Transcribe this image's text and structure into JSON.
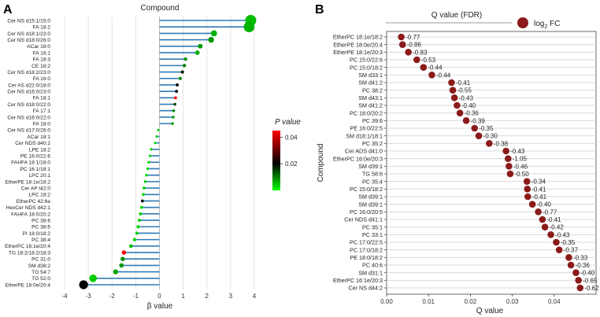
{
  "figure": {
    "panel_a_letter": "A",
    "panel_b_letter": "B"
  },
  "chart_data": [
    {
      "type": "scatter",
      "panel": "A",
      "title": "Compound",
      "xlabel": "β value",
      "ylabel": "",
      "xlim": [
        -4.5,
        4.5
      ],
      "xticks": [
        -4,
        -3,
        -2,
        -1,
        0,
        1,
        2,
        3,
        4
      ],
      "grid": "vertical",
      "colorbar": {
        "title": "P value",
        "ticks": [
          0.04,
          0.02
        ],
        "range": [
          0.0,
          0.045
        ],
        "low_color": "#00ff00",
        "mid_color": "#000000",
        "high_color": "#ff0000"
      },
      "categories": [
        "Cer NS d15:1/15:0",
        "FA 18:2",
        "Cer NS d18:1/23:0",
        "Cer NS d18:0/26:0",
        "ACar 16:0",
        "FA 16:1",
        "FA 18:3",
        "CE 18:2",
        "Cer NS d18:2/23:0",
        "FA 16:0",
        "Cer AS d22:0/18:0",
        "Cer NS d16:0/23:0",
        "FA 18:1",
        "Cer NS d18:0/22:0",
        "FA 17:1",
        "Cer NS d16:0/22:0",
        "FA 18:0",
        "Cer NS d17:0/26:0",
        "ACar 18:1",
        "Cer NDS d40:2",
        "LPE 18:2",
        "PE 16:0/22:6",
        "FAHFA 18:1/18:0",
        "PC 16:1/18:1",
        "LPC 20:1",
        "EtherPE 18:1e/18:2",
        "Cer AP t42:0",
        "LPC 18:2",
        "EtherPC 42:6e",
        "HexCer NDS d42:1",
        "FAHFA 18:0/20:2",
        "PC 38:6",
        "PC 38:5",
        "PI 18:0/18:2",
        "PC 38:4",
        "EtherPC 16:1e/20:4",
        "TG 18:2/18:2/18:3",
        "PC 31:0",
        "SM d38:2",
        "TG 54:7",
        "TG 52:0",
        "EtherPE 18:0e/20:4"
      ],
      "values": [
        3.85,
        3.78,
        2.3,
        2.18,
        1.72,
        1.6,
        1.1,
        1.05,
        0.97,
        0.88,
        0.75,
        0.72,
        0.68,
        0.65,
        0.6,
        0.58,
        0.55,
        -0.05,
        -0.12,
        -0.18,
        -0.35,
        -0.4,
        -0.45,
        -0.5,
        -0.55,
        -0.6,
        -0.65,
        -0.68,
        -0.72,
        -0.75,
        -0.8,
        -0.85,
        -0.9,
        -0.95,
        -1.05,
        -1.2,
        -1.5,
        -1.55,
        -1.6,
        -1.85,
        -2.8,
        -3.2
      ],
      "p_values": [
        0.005,
        0.006,
        0.006,
        0.008,
        0.008,
        0.006,
        0.008,
        0.01,
        0.018,
        0.009,
        0.02,
        0.02,
        0.04,
        0.015,
        0.009,
        0.008,
        0.007,
        0.003,
        0.003,
        0.003,
        0.003,
        0.003,
        0.003,
        0.003,
        0.003,
        0.004,
        0.004,
        0.003,
        0.02,
        0.003,
        0.004,
        0.003,
        0.003,
        0.004,
        0.003,
        0.005,
        0.045,
        0.009,
        0.008,
        0.007,
        0.004,
        0.02
      ]
    },
    {
      "type": "scatter",
      "panel": "B",
      "title": "Q value (FDR)",
      "legend_label": "log",
      "legend_sub": "2",
      "legend_tail": " FC",
      "legend_position": "top",
      "xlabel": "Q value",
      "ylabel": "Compound",
      "xlim": [
        0,
        0.05
      ],
      "xticks": [
        "0.00",
        "0.01",
        "0.02",
        "0.03",
        "0.04"
      ],
      "grid": "horizontal",
      "categories": [
        "EtherPC 18:1e/18:2",
        "EtherPE 18:0e/20:4",
        "EtherPE 18:1e/20:3",
        "PC 15:0/22:6",
        "PC 15:0/18:2",
        "SM d33:1",
        "SM d41:2",
        "PC 38:2",
        "SM d43:1",
        "SM d41:2",
        "PC 18:0/20:2",
        "PC 39:6",
        "PE 16:0/22:5",
        "SM d18:1/18:1",
        "PC 35:2",
        "Cer ADS d41:0",
        "EtherPC 16:0e/20:3",
        "SM d39:1",
        "TG 58:6",
        "PC 35:4",
        "PC 15:0/18:2",
        "SM d39:1",
        "SM d39:1",
        "PC 16:0/20:5",
        "Cer NDS d41:1",
        "PC 35:1",
        "PC 33:1",
        "PC 17:0/22:5",
        "PC 17:0/18:2",
        "PE 18:0/18:2",
        "PC 40:6",
        "SM d31:1",
        "EtherPC 16:1e/20:3",
        "Cer NS d44:2"
      ],
      "x": [
        0.0035,
        0.0038,
        0.0052,
        0.0072,
        0.0088,
        0.0108,
        0.0155,
        0.0158,
        0.0162,
        0.0168,
        0.0175,
        0.019,
        0.021,
        0.022,
        0.0245,
        0.0285,
        0.029,
        0.0292,
        0.0295,
        0.0335,
        0.0336,
        0.0337,
        0.0348,
        0.0362,
        0.0372,
        0.0378,
        0.0392,
        0.0405,
        0.0412,
        0.0435,
        0.044,
        0.0452,
        0.0458,
        0.0462
      ],
      "labels": [
        "-0.77",
        "-0.86",
        "-0.83",
        "-0.53",
        "-0.44",
        "-0.44",
        "-0.41",
        "-0.55",
        "-0.43",
        "-0.40",
        "-0.36",
        "-0.39",
        "-0.35",
        "-0.30",
        "-0.38",
        "-0.43",
        "-1.05",
        "-0.46",
        "-0.50",
        "-0.34",
        "-0.41",
        "-0.41",
        "-0.40",
        "-0.77",
        "-0.41",
        "-0.42",
        "-0.43",
        "-0.35",
        "-0.37",
        "-0.33",
        "-0.36",
        "-0.40",
        "-0.65",
        "-0.62"
      ],
      "point_color": "#8b1a1a"
    }
  ]
}
